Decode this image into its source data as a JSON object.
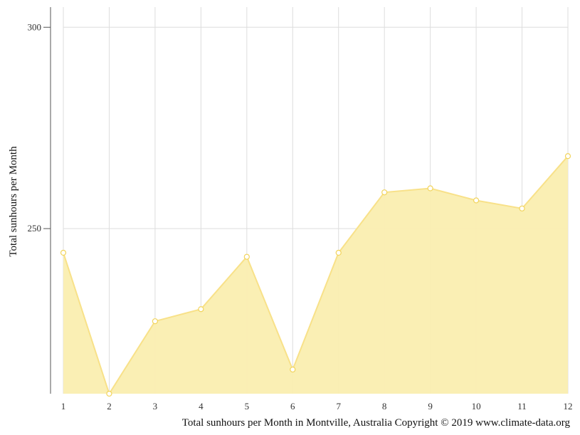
{
  "chart_data": {
    "type": "area",
    "x": [
      1,
      2,
      3,
      4,
      5,
      6,
      7,
      8,
      9,
      10,
      11,
      12
    ],
    "values": [
      244,
      209,
      227,
      230,
      243,
      215,
      244,
      259,
      260,
      257,
      255,
      268
    ],
    "ylabel": "Total sunhours per Month",
    "xlabel": "",
    "caption": "Total sunhours per Month in Montville, Australia Copyright © 2019 www.climate-data.org",
    "xlim": [
      1,
      12
    ],
    "ylim": [
      209,
      305
    ],
    "y_ticks": [
      250,
      300
    ],
    "x_ticks": [
      1,
      2,
      3,
      4,
      5,
      6,
      7,
      8,
      9,
      10,
      11,
      12
    ],
    "grid": true,
    "colors": {
      "fill": "#faeeb0",
      "line": "#f8e189",
      "marker_stroke": "#f2d45c",
      "grid": "#dddddd",
      "axis": "#555555"
    }
  }
}
